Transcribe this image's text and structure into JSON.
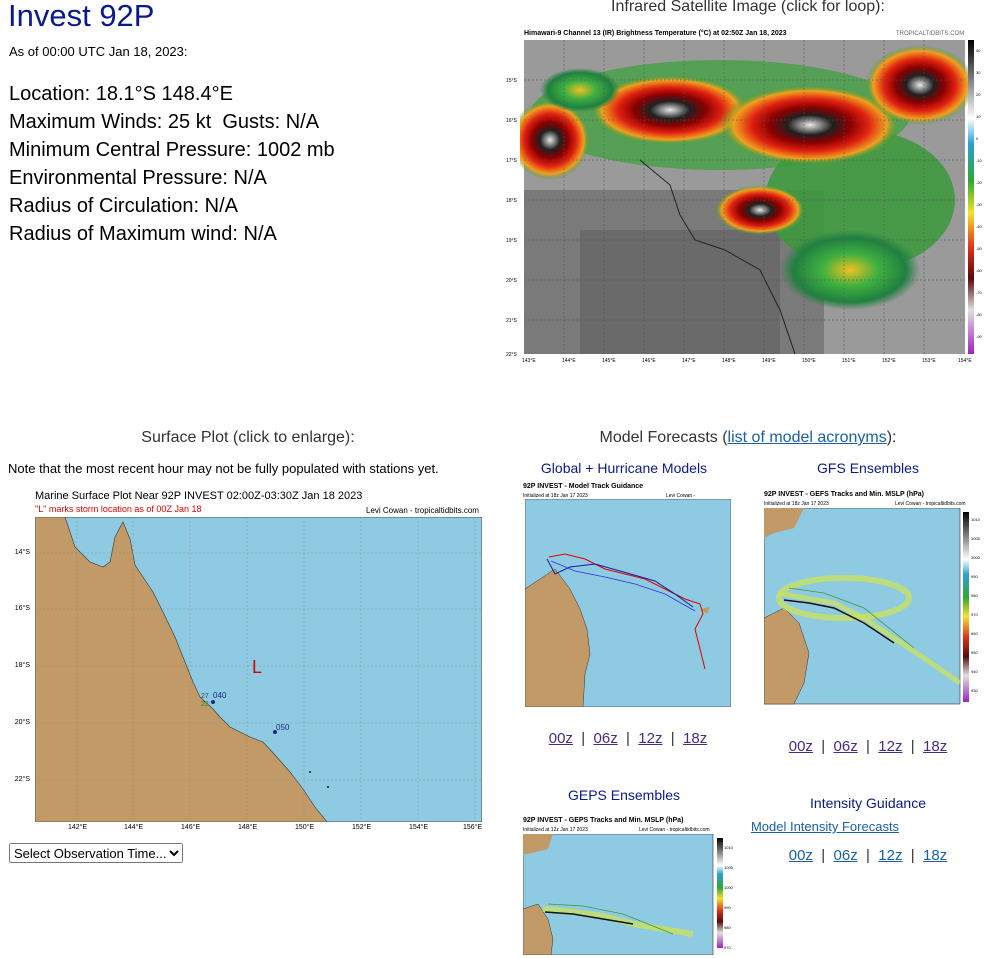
{
  "header": {
    "title": "Invest 92P",
    "as_of": "As of 00:00 UTC Jan 18, 2023:"
  },
  "storm_info": {
    "location": "Location: 18.1°S 148.4°E",
    "max_winds": "Maximum Winds: 25 kt  Gusts: N/A",
    "min_pressure": "Minimum Central Pressure: 1002 mb",
    "env_pressure": "Environmental Pressure: N/A",
    "radius_circ": "Radius of Circulation: N/A",
    "radius_max_wind": "Radius of Maximum wind: N/A"
  },
  "satellite": {
    "heading": "Infrared Satellite Image (click for loop):",
    "caption": "Himawari-9 Channel 13 (IR) Brightness Temperature (°C) at 02:50Z Jan 18, 2023",
    "credit": "TROPICALTIDBITS.COM",
    "lat_ticks": [
      "15°S",
      "16°S",
      "17°S",
      "18°S",
      "19°S",
      "20°S",
      "21°S",
      "22°S"
    ],
    "lon_ticks": [
      "143°E",
      "144°E",
      "145°E",
      "146°E",
      "147°E",
      "148°E",
      "149°E",
      "150°E",
      "151°E",
      "152°E",
      "153°E",
      "154°E"
    ],
    "colorbar_ticks": [
      "40",
      "30",
      "20",
      "10",
      "0",
      "-10",
      "-20",
      "-30",
      "-40",
      "-50",
      "-60",
      "-70",
      "-80",
      "-90"
    ]
  },
  "surface": {
    "heading": "Surface Plot (click to enlarge):",
    "note": "Note that the most recent hour may not be fully populated with stations yet.",
    "plot_title": "Marine Surface Plot Near 92P INVEST 02:00Z-03:30Z Jan 18 2023",
    "plot_subtitle": "\"L\" marks storm location as of 00Z Jan 18",
    "credit": "Levi Cowan - tropicaltidbits.com",
    "storm_marker": "L",
    "lat_ticks": [
      "14°S",
      "16°S",
      "18°S",
      "20°S",
      "22°S"
    ],
    "lon_ticks": [
      "142°E",
      "144°E",
      "146°E",
      "148°E",
      "150°E",
      "152°E",
      "154°E",
      "156°E"
    ],
    "station_labels": [
      "040",
      "27",
      "23",
      "050"
    ],
    "select_label": "Select Observation Time..."
  },
  "models": {
    "heading_prefix": "Model Forecasts (",
    "heading_link": "list of model acronyms",
    "heading_suffix": "):",
    "global": {
      "title": "Global + Hurricane Models",
      "plot_title": "92P INVEST - Model Track Guidance",
      "plot_sub": "Initialized at 18z Jan 17 2023",
      "credit": "Levi Cowan - tropicaltidbits.com"
    },
    "gfs": {
      "title": "GFS Ensembles",
      "plot_title": "92P INVEST - GEFS Tracks and Min. MSLP (hPa)",
      "plot_sub": "Initialized at 18z Jan 17 2023",
      "credit": "Levi Cowan - tropicaltidbits.com",
      "colorbar_ticks": [
        "1010",
        "1005",
        "1000",
        "990",
        "980",
        "970",
        "960",
        "950",
        "940",
        "930"
      ]
    },
    "geps": {
      "title": "GEPS Ensembles",
      "plot_title": "92P INVEST - GEPS Tracks and Min. MSLP (hPa)",
      "plot_sub": "Initialized at 12z Jan 17 2023",
      "credit": "Levi Cowan - tropicaltidbits.com",
      "colorbar_ticks": [
        "1010",
        "1005",
        "1000",
        "990",
        "980",
        "970"
      ]
    },
    "intensity": {
      "title": "Intensity Guidance",
      "link": "Model Intensity Forecasts"
    },
    "cycles": [
      "00z",
      "06z",
      "12z",
      "18z"
    ]
  }
}
